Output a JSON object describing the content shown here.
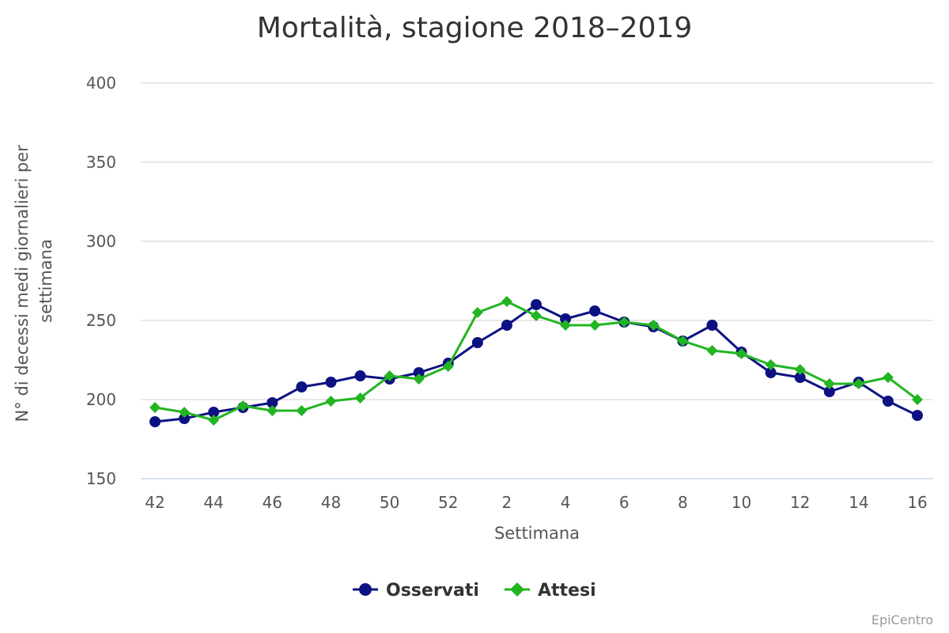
{
  "chart_data": {
    "type": "line",
    "title": "Mortalità, stagione 2018–2019",
    "xlabel": "Settimana",
    "ylabel_lines": [
      "N° di decessi medi giornalieri per",
      "settimana"
    ],
    "ylim": [
      150,
      400
    ],
    "yticks": [
      150,
      200,
      250,
      300,
      350,
      400
    ],
    "grid": true,
    "legend_position": "bottom-center",
    "categories": [
      "42",
      "43",
      "44",
      "45",
      "46",
      "47",
      "48",
      "49",
      "50",
      "51",
      "52",
      "1",
      "2",
      "3",
      "4",
      "5",
      "6",
      "7",
      "8",
      "9",
      "10",
      "11",
      "12",
      "13",
      "14",
      "15",
      "16"
    ],
    "x_tick_labels": [
      "42",
      "44",
      "46",
      "48",
      "50",
      "52",
      "2",
      "4",
      "6",
      "8",
      "10",
      "12",
      "14",
      "16"
    ],
    "series": [
      {
        "name": "Osservati",
        "color": "#0d1282",
        "marker": "circle",
        "values": [
          186,
          188,
          192,
          195,
          198,
          208,
          211,
          215,
          213,
          217,
          223,
          236,
          247,
          260,
          251,
          256,
          249,
          246,
          237,
          247,
          230,
          217,
          214,
          205,
          211,
          199,
          190
        ]
      },
      {
        "name": "Attesi",
        "color": "#22b522",
        "marker": "diamond",
        "values": [
          195,
          192,
          187,
          196,
          193,
          193,
          199,
          201,
          215,
          213,
          221,
          255,
          262,
          253,
          247,
          247,
          249,
          247,
          237,
          231,
          229,
          222,
          219,
          210,
          210,
          214,
          200
        ]
      }
    ]
  },
  "credit": "EpiCentro"
}
